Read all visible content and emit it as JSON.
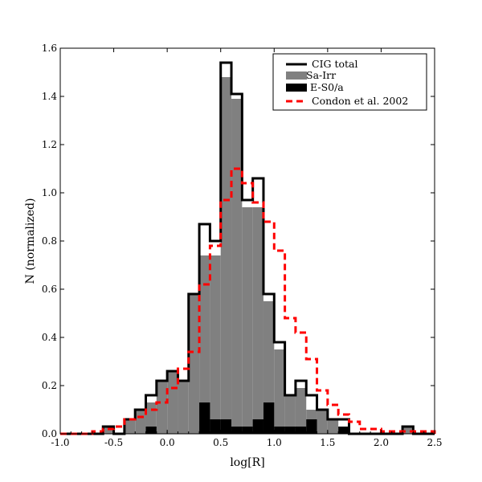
{
  "chart_data": {
    "type": "bar",
    "subtype": "step-histogram",
    "xlabel": "log[R]",
    "ylabel": "N (normalized)",
    "xlim": [
      -1.0,
      2.5
    ],
    "ylim": [
      0.0,
      1.6
    ],
    "bin_width": 0.1,
    "x_ticks": [
      -1.0,
      -0.5,
      0.0,
      0.5,
      1.0,
      1.5,
      2.0,
      2.5
    ],
    "x_tick_labels": [
      "-1.0",
      "-0.5",
      "0.0",
      "0.5",
      "1.0",
      "1.5",
      "2.0",
      "2.5"
    ],
    "y_ticks": [
      0.0,
      0.2,
      0.4,
      0.6,
      0.8,
      1.0,
      1.2,
      1.4,
      1.6
    ],
    "y_tick_labels": [
      "0.0",
      "0.2",
      "0.4",
      "0.6",
      "0.8",
      "1.0",
      "1.2",
      "1.4",
      "1.6"
    ],
    "grid": false,
    "legend_position": "top-right",
    "bin_edges": [
      -1.0,
      -0.9,
      -0.8,
      -0.7,
      -0.6,
      -0.5,
      -0.4,
      -0.3,
      -0.2,
      -0.1,
      0.0,
      0.1,
      0.2,
      0.3,
      0.4,
      0.5,
      0.6,
      0.7,
      0.8,
      0.9,
      1.0,
      1.1,
      1.2,
      1.3,
      1.4,
      1.5,
      1.6,
      1.7,
      1.8,
      1.9,
      2.0,
      2.1,
      2.2,
      2.3,
      2.4,
      2.5
    ],
    "series": [
      {
        "name": "CIG total",
        "style": "step-outline",
        "color": "#000000",
        "values": [
          0,
          0,
          0,
          0,
          0.03,
          0,
          0.06,
          0.1,
          0.16,
          0.22,
          0.26,
          0.22,
          0.58,
          0.87,
          0.8,
          1.54,
          1.41,
          0.97,
          1.06,
          0.58,
          0.38,
          0.16,
          0.22,
          0.16,
          0.1,
          0.06,
          0.06,
          0,
          0,
          0,
          0,
          0,
          0.03,
          0,
          0
        ]
      },
      {
        "name": "Sa-Irr",
        "style": "filled",
        "color": "#808080",
        "values": [
          0,
          0,
          0,
          0,
          0.03,
          0,
          0.06,
          0.1,
          0.13,
          0.22,
          0.26,
          0.22,
          0.58,
          0.74,
          0.74,
          1.48,
          1.39,
          0.94,
          0.94,
          0.55,
          0.35,
          0.16,
          0.19,
          0.1,
          0.1,
          0.06,
          0.03,
          0,
          0,
          0,
          0,
          0,
          0.03,
          0,
          0
        ]
      },
      {
        "name": "E-S0/a",
        "style": "filled",
        "color": "#000000",
        "values": [
          0,
          0,
          0,
          0,
          0,
          0,
          0,
          0,
          0.03,
          0,
          0,
          0,
          0,
          0.13,
          0.06,
          0.06,
          0.03,
          0.03,
          0.06,
          0.13,
          0.03,
          0.03,
          0.03,
          0.06,
          0,
          0,
          0.03,
          0,
          0,
          0,
          0,
          0,
          0,
          0,
          0
        ]
      },
      {
        "name": "Condon et al. 2002",
        "style": "dashed-step",
        "color": "#ff0000",
        "values": [
          0,
          0,
          0,
          0.01,
          0.02,
          0.03,
          0.06,
          0.07,
          0.1,
          0.13,
          0.19,
          0.27,
          0.34,
          0.62,
          0.78,
          0.97,
          1.1,
          1.04,
          0.96,
          0.88,
          0.76,
          0.48,
          0.42,
          0.31,
          0.18,
          0.12,
          0.08,
          0.05,
          0.02,
          0.02,
          0.01,
          0.01,
          0.01,
          0.01,
          0.01
        ]
      }
    ]
  }
}
